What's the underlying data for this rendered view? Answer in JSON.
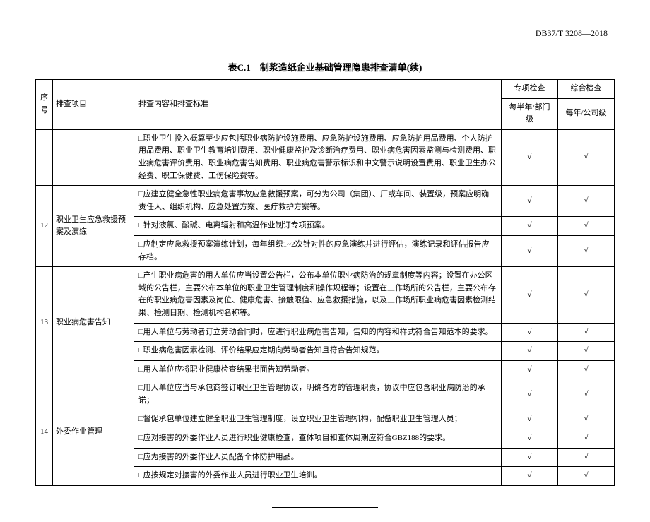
{
  "doc_number": "DB37/T 3208—2018",
  "table_title": "表C.1　制浆造纸企业基础管理隐患排查清单(续)",
  "headers": {
    "num": "序号",
    "item": "排查项目",
    "content": "排查内容和排查标准",
    "special": "专项检查",
    "comprehensive": "综合检查",
    "special_sub": "每半年/部门级",
    "comprehensive_sub": "每年/公司级"
  },
  "check_mark": "√",
  "rows": [
    {
      "num": "",
      "item": "",
      "content": "□职业卫生投入概算至少应包括职业病防护设施费用、应急防护设施费用、应急防护用品费用、个人防护用品费用、职业卫生教育培训费用、职业健康监护及诊断治疗费用、职业病危害因素监测与检测费用、职业病危害评价费用、职业病危害告知费用、职业病危害警示标识和中文警示说明设置费用、职业卫生办公经费、职工保健费、工伤保险费等。",
      "c1": "√",
      "c2": "√"
    },
    {
      "num": "12",
      "item": "职业卫生应急救援预案及演练",
      "rowspan": 3,
      "content": "□应建立健全急性职业病危害事故应急救援预案，可分为公司（集团）、厂或车间、装置级，预案应明确责任人、组织机构、应急处置方案、医疗救护方案等。",
      "c1": "√",
      "c2": "√"
    },
    {
      "content": "□针对液氯、酸碱、电离辐射和高温作业制订专项预案。",
      "c1": "√",
      "c2": "√"
    },
    {
      "content": "□应制定应急救援预案演练计划，每年组织1~2次针对性的应急演练并进行评估，演练记录和评估报告应存档。",
      "c1": "√",
      "c2": "√"
    },
    {
      "num": "13",
      "item": "职业病危害告知",
      "rowspan": 4,
      "content": "□产生职业病危害的用人单位应当设置公告栏，公布本单位职业病防治的规章制度等内容；设置在办公区域的公告栏，主要公布本单位的职业卫生管理制度和操作规程等；设置在工作场所的公告栏，主要公布存在的职业病危害因素及岗位、健康危害、接触限值、应急救援措施，以及工作场所职业病危害因素检测结果、检测日期、检测机构名称等。",
      "c1": "√",
      "c2": "√"
    },
    {
      "content": "□用人单位与劳动者订立劳动合同时，应进行职业病危害告知，告知的内容和样式符合告知范本的要求。",
      "c1": "√",
      "c2": "√"
    },
    {
      "content": "□职业病危害因素检测、评价结果应定期向劳动者告知且符合告知规范。",
      "c1": "√",
      "c2": "√"
    },
    {
      "content": "□用人单位应将职业健康检查结果书面告知劳动者。",
      "c1": "√",
      "c2": "√"
    },
    {
      "num": "14",
      "item": "外委作业管理",
      "rowspan": 5,
      "content": "□用人单位应当与承包商签订职业卫生管理协议，明确各方的管理职责，协议中应包含职业病防治的承诺；",
      "c1": "√",
      "c2": "√"
    },
    {
      "content": "□督促承包单位建立健全职业卫生管理制度，设立职业卫生管理机构，配备职业卫生管理人员；",
      "c1": "√",
      "c2": "√"
    },
    {
      "content": "□应对接害的外委作业人员进行职业健康检查，查体项目和查体周期应符合GBZ188的要求。",
      "c1": "√",
      "c2": "√"
    },
    {
      "content": "□应为接害的外委作业人员配备个体防护用品。",
      "c1": "√",
      "c2": "√"
    },
    {
      "content": "□应按规定对接害的外委作业人员进行职业卫生培训。",
      "c1": "√",
      "c2": "√"
    }
  ]
}
